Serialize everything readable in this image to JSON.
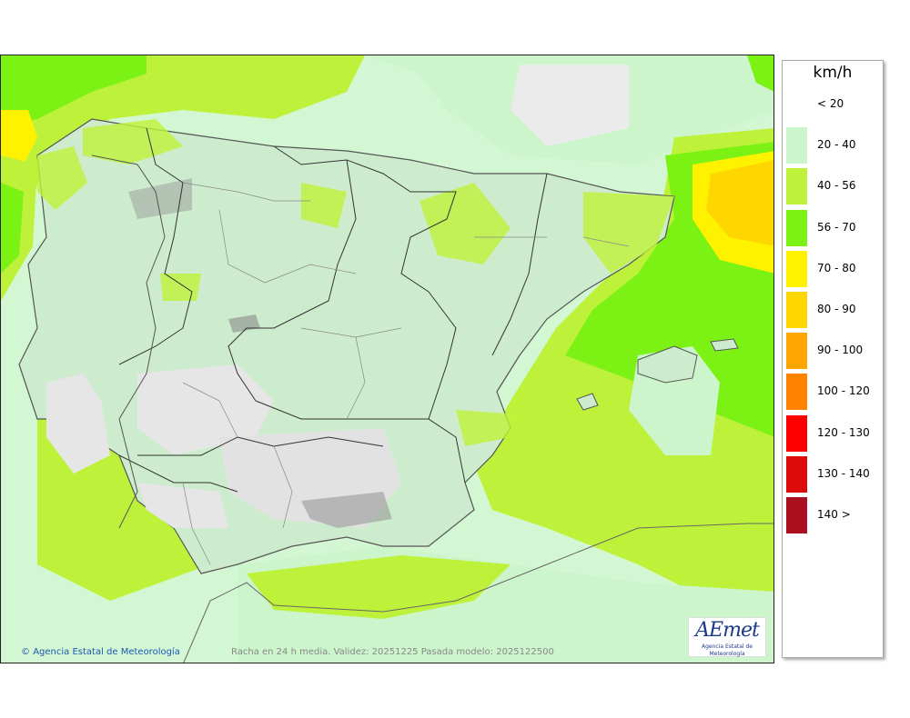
{
  "legend": {
    "title": "km/h",
    "items": [
      {
        "label": "< 20",
        "color": "#ffffff"
      },
      {
        "label": "20 - 40",
        "color": "#ccf5cc"
      },
      {
        "label": "40 - 56",
        "color": "#bef23a"
      },
      {
        "label": "56 - 70",
        "color": "#7cf214"
      },
      {
        "label": "70 - 80",
        "color": "#fff200"
      },
      {
        "label": "80 - 90",
        "color": "#ffd700"
      },
      {
        "label": "90 - 100",
        "color": "#ffa500"
      },
      {
        "label": "100 - 120",
        "color": "#ff8200"
      },
      {
        "label": "120 - 130",
        "color": "#ff0000"
      },
      {
        "label": "130 - 140",
        "color": "#dc0a0a"
      },
      {
        "label": "140 >",
        "color": "#aa1020"
      }
    ]
  },
  "footer": {
    "credit": "Agencia Estatal de Meteorología",
    "caption": "Racha en 24 h media. Validez: 20251225 Pasada modelo: 2025122500"
  },
  "logo": {
    "name": "AEmet",
    "subtitle": "Agencia Estatal de Meteorología"
  }
}
